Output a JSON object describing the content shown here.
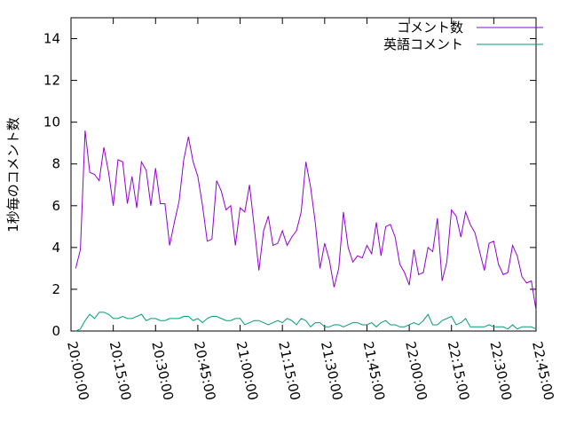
{
  "chart_data": {
    "type": "line",
    "y_label": "1秒毎のコメント数",
    "x": [
      "20:01:40",
      "20:03:20",
      "20:05:00",
      "20:06:40",
      "20:08:20",
      "20:10:00",
      "20:11:40",
      "20:13:20",
      "20:15:00",
      "20:16:40",
      "20:18:20",
      "20:20:00",
      "20:21:40",
      "20:23:20",
      "20:25:00",
      "20:26:40",
      "20:28:20",
      "20:30:00",
      "20:31:40",
      "20:33:20",
      "20:35:00",
      "20:36:40",
      "20:38:20",
      "20:40:00",
      "20:41:40",
      "20:43:20",
      "20:45:00",
      "20:46:40",
      "20:48:20",
      "20:50:00",
      "20:51:40",
      "20:53:20",
      "20:55:00",
      "20:56:40",
      "20:58:20",
      "21:00:00",
      "21:01:40",
      "21:03:20",
      "21:05:00",
      "21:06:40",
      "21:08:20",
      "21:10:00",
      "21:11:40",
      "21:13:20",
      "21:15:00",
      "21:16:40",
      "21:18:20",
      "21:20:00",
      "21:21:40",
      "21:23:20",
      "21:25:00",
      "21:26:40",
      "21:28:20",
      "21:30:00",
      "21:31:40",
      "21:33:20",
      "21:35:00",
      "21:36:40",
      "21:38:20",
      "21:40:00",
      "21:41:40",
      "21:43:20",
      "21:45:00",
      "21:46:40",
      "21:48:20",
      "21:50:00",
      "21:51:40",
      "21:53:20",
      "21:55:00",
      "21:56:40",
      "21:58:20",
      "22:00:00",
      "22:01:40",
      "22:03:20",
      "22:05:00",
      "22:06:40",
      "22:08:20",
      "22:10:00",
      "22:11:40",
      "22:13:20",
      "22:15:00",
      "22:16:40",
      "22:18:20",
      "22:20:00",
      "22:21:40",
      "22:23:20",
      "22:25:00",
      "22:26:40",
      "22:28:20",
      "22:30:00",
      "22:31:40",
      "22:33:20",
      "22:35:00",
      "22:36:40",
      "22:38:20",
      "22:40:00",
      "22:41:40",
      "22:43:20",
      "22:45:00"
    ],
    "series": [
      {
        "name": "コメント数",
        "color": "#9400d3",
        "values": [
          3.0,
          3.9,
          9.6,
          7.6,
          7.5,
          7.2,
          8.8,
          7.6,
          6.0,
          8.2,
          8.1,
          6.1,
          7.4,
          5.9,
          8.1,
          7.7,
          6.0,
          7.8,
          6.1,
          6.1,
          4.1,
          5.2,
          6.2,
          8.2,
          9.3,
          8.1,
          7.4,
          6.0,
          4.3,
          4.4,
          7.2,
          6.7,
          5.8,
          6.0,
          4.1,
          5.9,
          5.7,
          7.0,
          5.0,
          2.9,
          4.8,
          5.5,
          4.1,
          4.2,
          4.8,
          4.1,
          4.5,
          4.8,
          5.7,
          8.1,
          6.9,
          5.2,
          3.0,
          4.2,
          3.4,
          2.1,
          3.0,
          5.7,
          4.0,
          3.3,
          3.6,
          3.5,
          4.1,
          3.7,
          5.2,
          3.6,
          5.0,
          5.1,
          4.5,
          3.2,
          2.8,
          2.2,
          3.9,
          2.7,
          2.8,
          4.0,
          3.8,
          5.4,
          2.4,
          3.3,
          5.8,
          5.5,
          4.5,
          5.7,
          5.1,
          4.7,
          3.8,
          2.9,
          4.2,
          4.3,
          3.2,
          2.7,
          2.8,
          4.1,
          3.6,
          2.6,
          2.3,
          2.4,
          1.0
        ]
      },
      {
        "name": "英語コメント",
        "color": "#009e73",
        "values": [
          0.0,
          0.1,
          0.5,
          0.8,
          0.6,
          0.9,
          0.9,
          0.8,
          0.6,
          0.6,
          0.7,
          0.6,
          0.6,
          0.7,
          0.8,
          0.5,
          0.6,
          0.6,
          0.5,
          0.5,
          0.6,
          0.6,
          0.6,
          0.7,
          0.7,
          0.5,
          0.6,
          0.4,
          0.6,
          0.7,
          0.7,
          0.6,
          0.5,
          0.5,
          0.6,
          0.6,
          0.3,
          0.4,
          0.5,
          0.5,
          0.4,
          0.3,
          0.4,
          0.5,
          0.4,
          0.6,
          0.5,
          0.3,
          0.6,
          0.5,
          0.2,
          0.4,
          0.4,
          0.2,
          0.2,
          0.3,
          0.3,
          0.2,
          0.3,
          0.4,
          0.4,
          0.3,
          0.3,
          0.4,
          0.2,
          0.4,
          0.5,
          0.3,
          0.3,
          0.2,
          0.2,
          0.3,
          0.4,
          0.3,
          0.5,
          0.8,
          0.3,
          0.3,
          0.5,
          0.6,
          0.7,
          0.3,
          0.4,
          0.6,
          0.2,
          0.2,
          0.2,
          0.2,
          0.3,
          0.2,
          0.2,
          0.2,
          0.1,
          0.3,
          0.1,
          0.2,
          0.2,
          0.2,
          0.1
        ]
      }
    ],
    "xlim": [
      "20:00:00",
      "22:45:00"
    ],
    "xticks": [
      "20:00:00",
      "20:15:00",
      "20:30:00",
      "20:45:00",
      "21:00:00",
      "21:15:00",
      "21:30:00",
      "21:45:00",
      "22:00:00",
      "22:15:00",
      "22:30:00",
      "22:45:00"
    ],
    "ylim": [
      0,
      15
    ],
    "yticks": [
      0,
      2,
      4,
      6,
      8,
      10,
      12,
      14
    ],
    "grid": false,
    "legend": "top-right"
  }
}
